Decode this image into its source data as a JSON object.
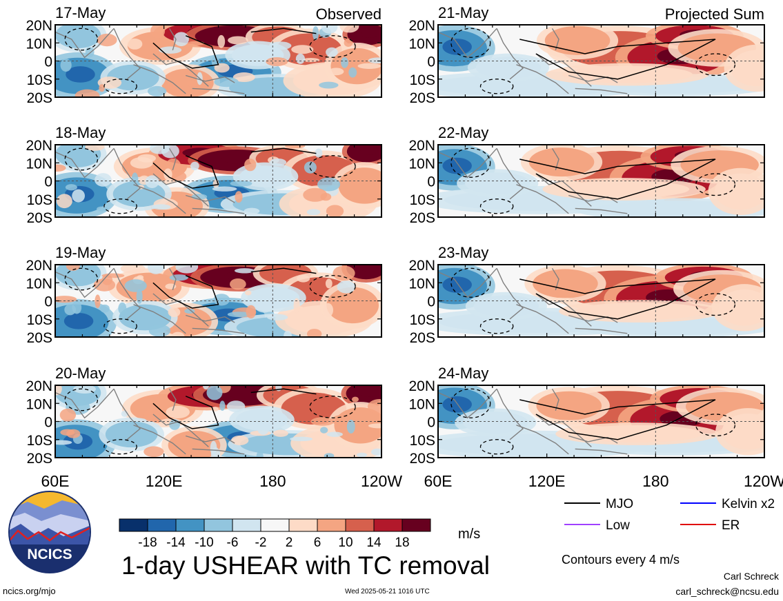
{
  "colors": {
    "scale": [
      "#08306b",
      "#2166ac",
      "#4393c3",
      "#92c5de",
      "#d1e5f0",
      "#f7f7f7",
      "#fddbc7",
      "#f4a582",
      "#d6604d",
      "#b2182b",
      "#67001f"
    ],
    "map_bg": "#f7f7f7",
    "coast": "#808080",
    "mjo": "#000000",
    "kelvin": "#0000ff",
    "low": "#a040ff",
    "er": "#e00000"
  },
  "left_column_label": "Observed",
  "right_column_label": "Projected Sum",
  "lat_labels": [
    "20N",
    "10N",
    "0",
    "10S",
    "20S"
  ],
  "lon_labels": [
    "60E",
    "120E",
    "180",
    "120W"
  ],
  "panels": [
    {
      "id": "obs-1",
      "date": "17-May",
      "kind": "observed"
    },
    {
      "id": "obs-2",
      "date": "18-May",
      "kind": "observed"
    },
    {
      "id": "obs-3",
      "date": "19-May",
      "kind": "observed"
    },
    {
      "id": "obs-4",
      "date": "20-May",
      "kind": "observed"
    },
    {
      "id": "proj-1",
      "date": "21-May",
      "kind": "projected"
    },
    {
      "id": "proj-2",
      "date": "22-May",
      "kind": "projected"
    },
    {
      "id": "proj-3",
      "date": "23-May",
      "kind": "projected"
    },
    {
      "id": "proj-4",
      "date": "24-May",
      "kind": "projected"
    }
  ],
  "colorbar": {
    "tick_labels": [
      "-18",
      "-14",
      "-10",
      "-6",
      "-2",
      "2",
      "6",
      "10",
      "14",
      "18"
    ],
    "units": "m/s"
  },
  "legend": {
    "items": [
      {
        "label": "MJO",
        "color": "#000000"
      },
      {
        "label": "Kelvin x2",
        "color": "#0000ff"
      },
      {
        "label": "Low",
        "color": "#a040ff"
      },
      {
        "label": "ER",
        "color": "#e00000"
      }
    ]
  },
  "logo_text": "NCICS",
  "title": "1-day USHEAR with TC removal",
  "contour_note": "Contours every 4 m/s",
  "footer": {
    "site": "ncics.org/mjo",
    "timestamp": "Wed 2025-05-21 1016 UTC",
    "author": "Carl Schreck",
    "email": "carl_schreck@ncsu.edu"
  }
}
